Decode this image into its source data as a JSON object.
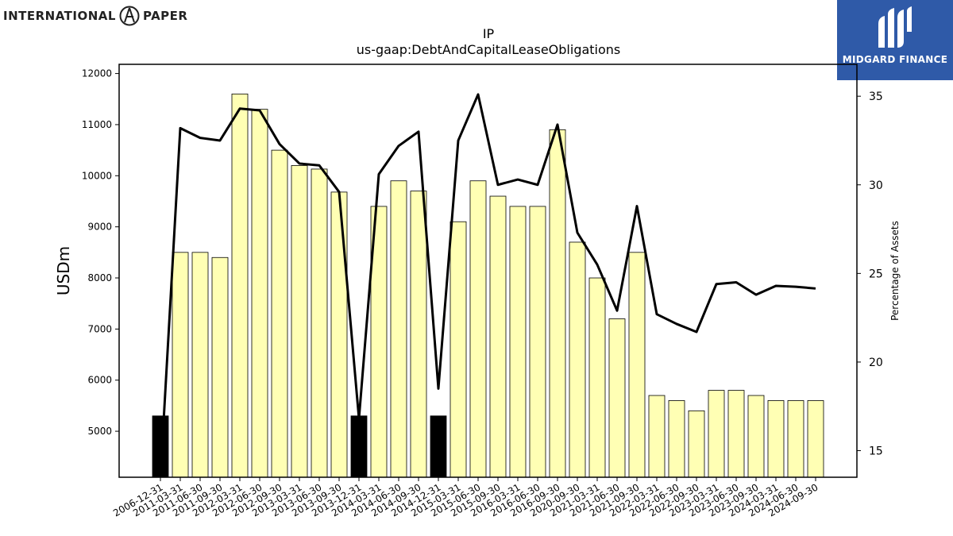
{
  "logos": {
    "left_word1": "INTERNATIONAL",
    "left_word2": "PAPER",
    "right_brand": "MIDGARD FINANCE"
  },
  "chart_data": {
    "type": "bar",
    "title": "IP",
    "subtitle": "us-gaap:DebtAndCapitalLeaseObligations",
    "ylabel": "USDm",
    "y2label": "Percentage of Assets",
    "ylim": [
      4100,
      12180
    ],
    "y2lim": [
      13.5,
      36.8
    ],
    "yticks": [
      5000,
      6000,
      7000,
      8000,
      9000,
      10000,
      11000,
      12000
    ],
    "y2ticks": [
      15,
      20,
      25,
      30,
      35
    ],
    "categories": [
      "2006-12-31",
      "2011-03-31",
      "2011-06-30",
      "2011-09-30",
      "2012-03-31",
      "2012-06-30",
      "2012-09-30",
      "2013-03-31",
      "2013-06-30",
      "2013-09-30",
      "2013-12-31",
      "2014-03-31",
      "2014-06-30",
      "2014-09-30",
      "2014-12-31",
      "2015-03-31",
      "2015-06-30",
      "2015-09-30",
      "2016-03-31",
      "2016-06-30",
      "2016-09-30",
      "2020-09-30",
      "2021-03-31",
      "2021-06-30",
      "2021-09-30",
      "2022-03-31",
      "2022-06-30",
      "2022-09-30",
      "2023-03-31",
      "2023-06-30",
      "2023-09-30",
      "2024-03-31",
      "2024-06-30",
      "2024-09-30"
    ],
    "series": [
      {
        "kind": "bar",
        "values": [
          5300,
          8500,
          8500,
          8400,
          11600,
          11300,
          10500,
          10200,
          10130,
          9680,
          5300,
          9400,
          9900,
          9700,
          5300,
          9100,
          9900,
          9600,
          9400,
          9400,
          10900,
          8700,
          8000,
          7200,
          8500,
          5700,
          5600,
          5400,
          5800,
          5800,
          5700,
          5600,
          5600,
          5600
        ],
        "highlighted": [
          0,
          10,
          14
        ],
        "color": "#ffffb4",
        "highlight_color": "#000000"
      },
      {
        "kind": "line",
        "axis": "right",
        "values": [
          13.5,
          33.2,
          32.65,
          32.5,
          34.3,
          34.2,
          32.3,
          31.2,
          31.1,
          29.6,
          16.8,
          30.6,
          32.2,
          33.0,
          18.5,
          32.5,
          35.1,
          30.0,
          30.3,
          30.0,
          33.4,
          27.3,
          25.5,
          22.9,
          28.8,
          22.7,
          22.15,
          21.7,
          24.4,
          24.5,
          23.8,
          24.3,
          24.25,
          24.15
        ],
        "color": "#000000"
      }
    ]
  }
}
